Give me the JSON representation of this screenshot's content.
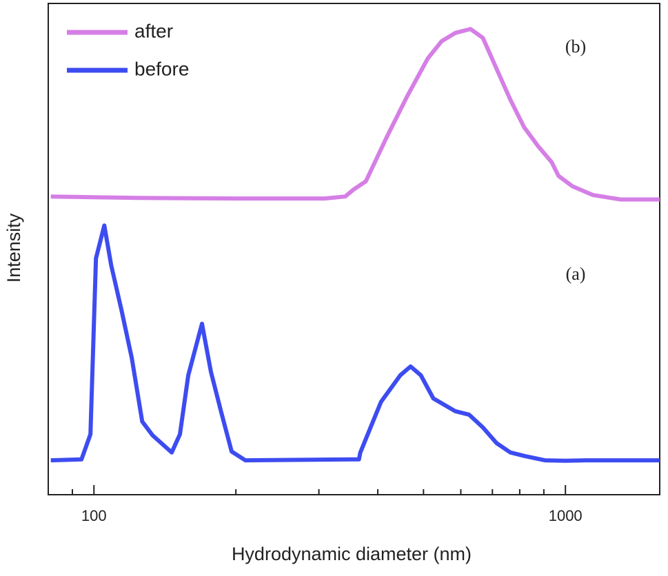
{
  "chart_data": {
    "type": "line",
    "x_label": "Hydrodynamic diameter (nm)",
    "y_label": "Intensity",
    "annotations": [
      "(b)",
      "(a)"
    ],
    "log_x": true,
    "legend": "upper left",
    "xlim": [
      80,
      1585
    ],
    "xticks": [
      100,
      1000
    ],
    "xminorticks": [
      90,
      200,
      300,
      400,
      500,
      600,
      700,
      800,
      900
    ],
    "ylim": [
      0,
      100
    ],
    "series": [
      {
        "name": "after",
        "color": "#d57fe6",
        "x": [
          81,
          124.4,
          206,
          308.3,
          341.2,
          355.1,
          377.3,
          417.4,
          461.6,
          510.5,
          546.1,
          583.9,
          628.8,
          668.1,
          714.5,
          764.2,
          817.4,
          874.2,
          935,
          966.9,
          1034,
          1144,
          1309,
          1585
        ],
        "values": [
          60.7,
          60.4,
          60.3,
          60.3,
          60.7,
          62.1,
          63.8,
          72.7,
          81.1,
          88.8,
          92.3,
          94.0,
          94.8,
          93.0,
          86.7,
          80.4,
          74.8,
          71.0,
          67.7,
          64.9,
          62.8,
          61.0,
          60.1,
          60.1
        ]
      },
      {
        "name": "before",
        "color": "#3d4cf0",
        "x": [
          81,
          94.1,
          98.3,
          101,
          105.2,
          108.8,
          114.4,
          120.3,
          126.6,
          133.1,
          146.2,
          152.2,
          158.5,
          169.5,
          177.1,
          186.2,
          195.9,
          209.5,
          364.8,
          367.3,
          406.3,
          446.3,
          469.4,
          493.6,
          524.6,
          583.9,
          624.6,
          668.1,
          714.5,
          764.2,
          817.4,
          904.2,
          1000,
          1106,
          1585
        ],
        "values": [
          7.0,
          7.2,
          12.3,
          48.1,
          54.8,
          46.7,
          37.6,
          27.8,
          14.9,
          12.1,
          8.6,
          12.3,
          24.3,
          34.8,
          25.0,
          16.8,
          8.8,
          7.0,
          7.2,
          8.6,
          18.9,
          24.3,
          26.1,
          24.3,
          19.6,
          17.0,
          16.3,
          13.7,
          10.5,
          8.6,
          7.9,
          7.0,
          6.9,
          7.0,
          7.0
        ]
      }
    ]
  }
}
